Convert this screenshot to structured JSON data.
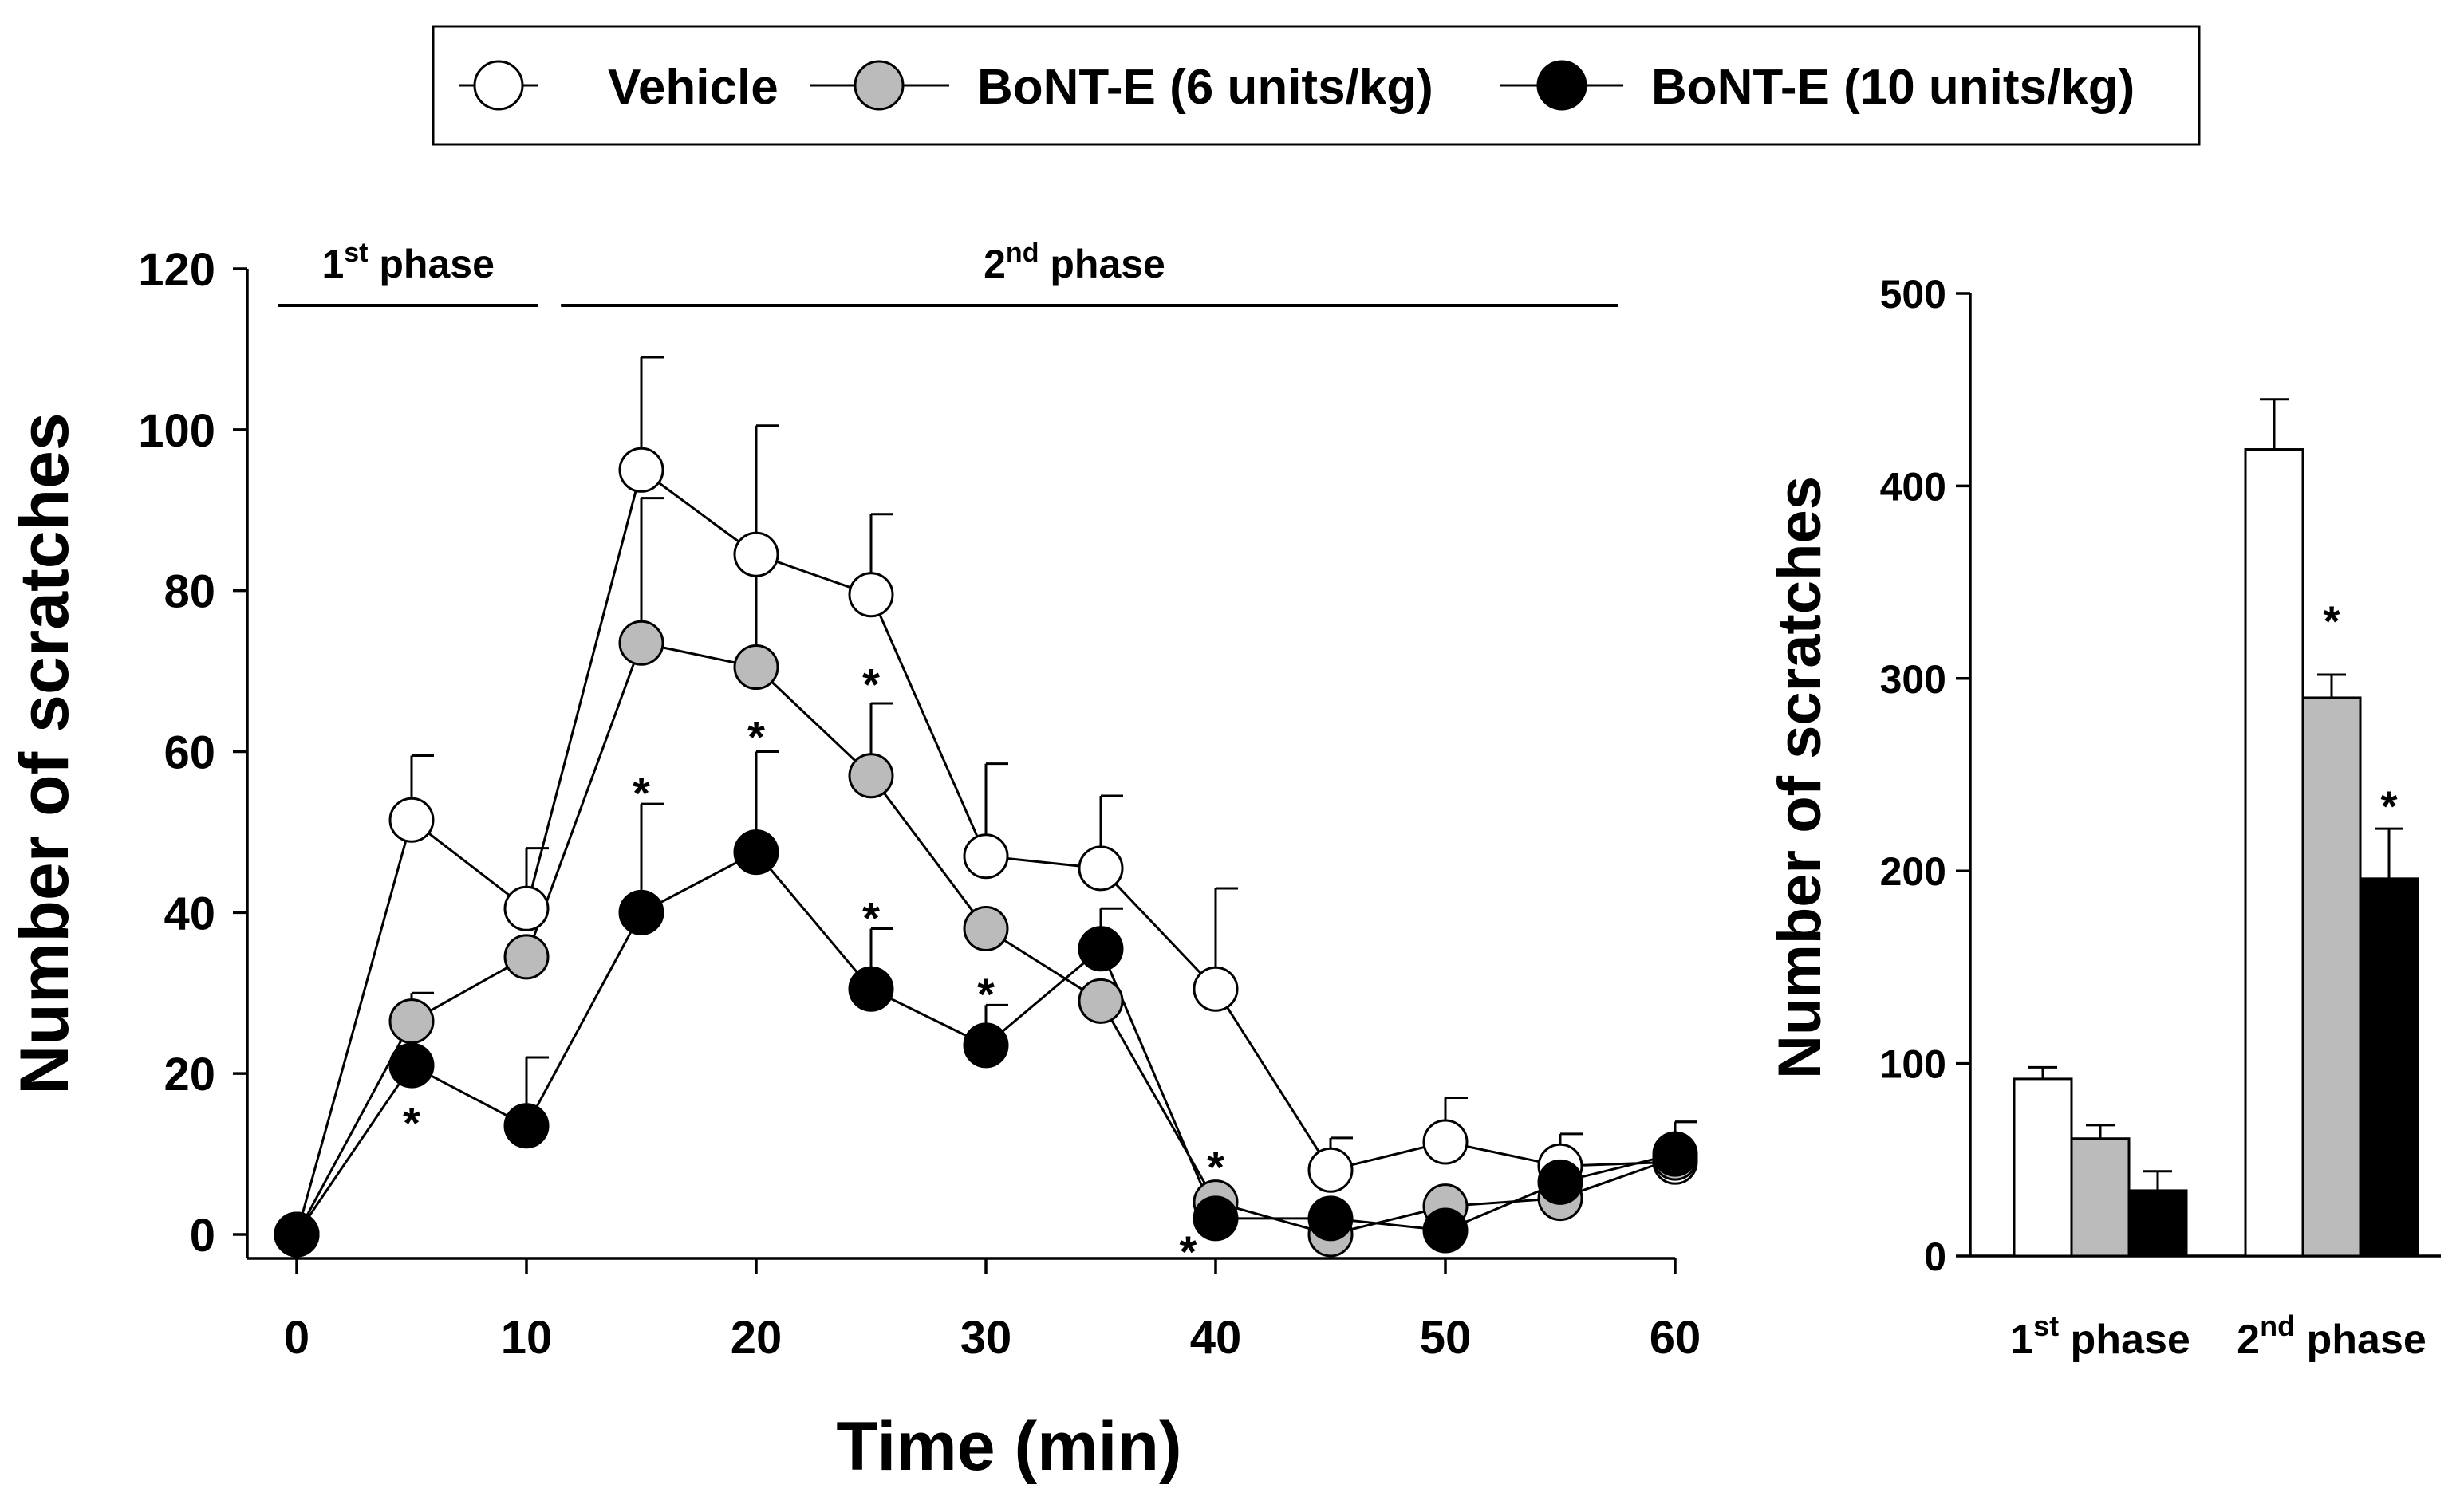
{
  "legend": {
    "items": [
      {
        "label": "Vehicle",
        "fill": "#ffffff"
      },
      {
        "label": "BoNT-E (6 units/kg)",
        "fill": "#bbbbbb"
      },
      {
        "label": "BoNT-E (10 units/kg)",
        "fill": "#000000"
      }
    ]
  },
  "chart_data": [
    {
      "type": "line",
      "title": "",
      "xlabel": "Time (min)",
      "ylabel": "Number of scratches",
      "xlim": [
        0,
        60
      ],
      "ylim": [
        0,
        120
      ],
      "xticks": [
        "0",
        "10",
        "20",
        "30",
        "40",
        "50",
        "60"
      ],
      "yticks": [
        "0",
        "20",
        "40",
        "60",
        "80",
        "100",
        "120"
      ],
      "phases": [
        {
          "base": "1",
          "sup": "st",
          "word": "phase",
          "range": [
            -0.8,
            10.5
          ]
        },
        {
          "base": "2",
          "sup": "nd",
          "word": "phase",
          "range": [
            11.5,
            57.5
          ]
        }
      ],
      "x": [
        0,
        5,
        10,
        15,
        20,
        25,
        30,
        35,
        40,
        45,
        50,
        55,
        60
      ],
      "series": [
        {
          "name": "Vehicle",
          "fill": "#ffffff",
          "values": [
            0,
            51.5,
            40.5,
            95,
            84.5,
            79.5,
            47,
            45.5,
            30.5,
            8,
            11.5,
            8.5,
            9
          ],
          "err": [
            0,
            8,
            7.5,
            14,
            16,
            10,
            11.5,
            9,
            12.5,
            4,
            5.5,
            4,
            5
          ]
        },
        {
          "name": "BoNT-E (6 units/kg)",
          "fill": "#bbbbbb",
          "values": [
            0,
            26.5,
            34.5,
            73.5,
            70.5,
            57,
            38,
            29,
            4,
            0,
            3.5,
            4.5,
            9.5
          ],
          "err": [
            0,
            3.5,
            0,
            18,
            13.5,
            9,
            0,
            0,
            0,
            0,
            0,
            0,
            0
          ]
        },
        {
          "name": "BoNT-E (10 units/kg)",
          "fill": "#000000",
          "values": [
            0,
            21,
            13.5,
            40,
            47.5,
            30.5,
            23.5,
            35.5,
            2,
            2,
            0.5,
            6.5,
            10
          ],
          "err": [
            0,
            0,
            8.5,
            13.5,
            12.5,
            7.5,
            5,
            5,
            0,
            0,
            0,
            0,
            4
          ]
        }
      ],
      "annotations": [
        {
          "text": "*",
          "x": 5,
          "y": 14.5
        },
        {
          "text": "*",
          "x": 15,
          "y": 55.5
        },
        {
          "text": "*",
          "x": 20,
          "y": 62.5
        },
        {
          "text": "*",
          "x": 25,
          "y": 69
        },
        {
          "text": "*",
          "x": 25,
          "y": 40
        },
        {
          "text": "*",
          "x": 30,
          "y": 30.5
        },
        {
          "text": "*",
          "x": 40,
          "y": 9
        },
        {
          "text": "*",
          "x": 38.8,
          "y": -1.5
        }
      ]
    },
    {
      "type": "bar",
      "xlabel": "",
      "ylabel": "Number of scratches",
      "ylim": [
        0,
        500
      ],
      "yticks": [
        "0",
        "100",
        "200",
        "300",
        "400",
        "500"
      ],
      "categories": [
        {
          "base": "1",
          "sup": "st",
          "word": "phase"
        },
        {
          "base": "2",
          "sup": "nd",
          "word": "phase"
        }
      ],
      "series": [
        {
          "name": "Vehicle",
          "fill": "#ffffff",
          "values": [
            92,
            419
          ],
          "err": [
            6,
            26
          ]
        },
        {
          "name": "BoNT-E (6 units/kg)",
          "fill": "#bbbbbb",
          "values": [
            61,
            290
          ],
          "err": [
            7,
            12
          ]
        },
        {
          "name": "BoNT-E (10 units/kg)",
          "fill": "#000000",
          "values": [
            34,
            196
          ],
          "err": [
            10,
            26
          ]
        }
      ],
      "annotations": [
        {
          "text": "*",
          "category": 1,
          "series": 1,
          "y": 332
        },
        {
          "text": "*",
          "category": 1,
          "series": 2,
          "y": 236
        }
      ]
    }
  ]
}
